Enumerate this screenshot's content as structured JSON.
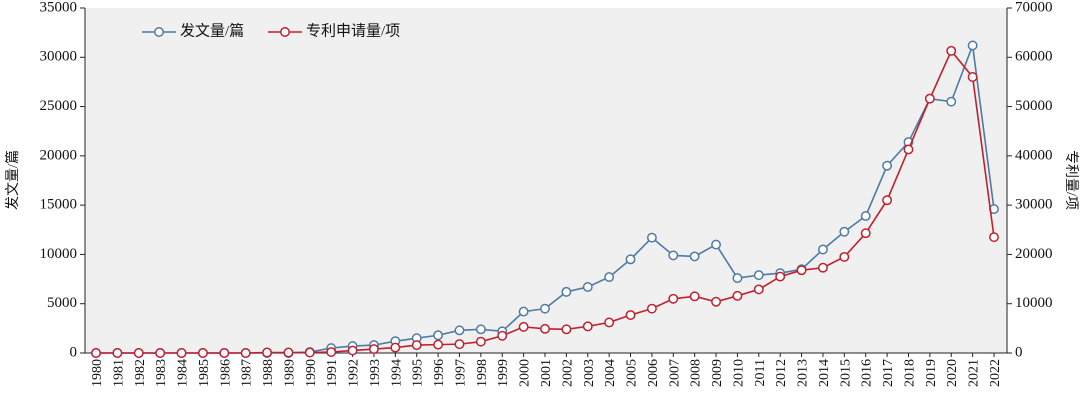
{
  "chart_data": {
    "type": "line",
    "title": "",
    "x": [
      "1980",
      "1981",
      "1982",
      "1983",
      "1984",
      "1985",
      "1986",
      "1987",
      "1988",
      "1989",
      "1990",
      "1991",
      "1992",
      "1993",
      "1994",
      "1995",
      "1996",
      "1997",
      "1998",
      "1999",
      "2000",
      "2001",
      "2002",
      "2003",
      "2004",
      "2005",
      "2006",
      "2007",
      "2008",
      "2009",
      "2010",
      "2011",
      "2012",
      "2013",
      "2014",
      "2015",
      "2016",
      "2017",
      "2018",
      "2019",
      "2020",
      "2021",
      "2022"
    ],
    "xlabel": "",
    "ylabel_left": "发文量/篇",
    "ylabel_right": "专利量/项",
    "ylim_left": [
      0,
      35000
    ],
    "ylim_right": [
      0,
      70000
    ],
    "yticks_left": [
      "0",
      "5000",
      "10000",
      "15000",
      "20000",
      "25000",
      "30000",
      "35000"
    ],
    "yticks_right": [
      "0",
      "10000",
      "20000",
      "30000",
      "40000",
      "50000",
      "60000",
      "70000"
    ],
    "grid": false,
    "legend_position": "top-left",
    "series": [
      {
        "name": "发文量/篇",
        "axis": "left",
        "color": "#4e7aa6",
        "values": [
          0,
          0,
          0,
          0,
          0,
          0,
          0,
          0,
          0,
          0,
          100,
          500,
          700,
          800,
          1200,
          1500,
          1800,
          2300,
          2400,
          2200,
          4200,
          4500,
          6200,
          6700,
          7700,
          9500,
          11700,
          9900,
          9800,
          11000,
          7600,
          7900,
          8100,
          8500,
          10500,
          12300,
          13900,
          19000,
          21400,
          25800,
          25500,
          31200,
          14600
        ]
      },
      {
        "name": "专利申请量/项",
        "axis": "right",
        "color": "#c0202e",
        "values": [
          0,
          0,
          0,
          0,
          0,
          0,
          0,
          0,
          100,
          100,
          100,
          200,
          500,
          800,
          1100,
          1600,
          1700,
          1800,
          2300,
          3500,
          5300,
          4900,
          4800,
          5400,
          6200,
          7700,
          9000,
          11000,
          11500,
          10400,
          11600,
          12900,
          15500,
          16800,
          17300,
          19500,
          24300,
          31000,
          41300,
          51600,
          61300,
          56000,
          23500
        ]
      }
    ]
  }
}
